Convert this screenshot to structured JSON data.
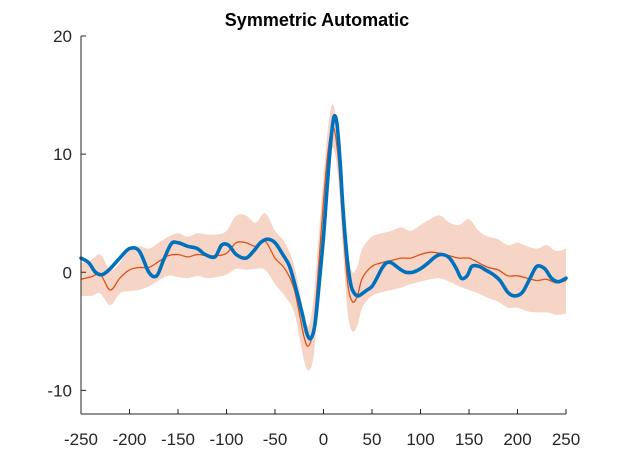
{
  "chart_data": {
    "type": "line",
    "title": "Symmetric Automatic",
    "xlabel": "",
    "ylabel": "",
    "xlim": [
      -250,
      250
    ],
    "ylim": [
      -12,
      20
    ],
    "xticks": [
      -250,
      -200,
      -150,
      -100,
      -50,
      0,
      50,
      100,
      150,
      200,
      250
    ],
    "xtick_labels": [
      "-250",
      "-200",
      "-150",
      "-100",
      "-50",
      "0",
      "50",
      "100",
      "150",
      "200",
      "250"
    ],
    "yticks": [
      -10,
      0,
      10,
      20
    ],
    "ytick_labels": [
      "-10",
      "0",
      "10",
      "20"
    ],
    "grid": false,
    "legend": "none",
    "colors": {
      "band": "#f6d5c7",
      "mean": "#d95319",
      "signal": "#0072bd",
      "axis": "#262626"
    },
    "band": {
      "x": [
        -250,
        -240,
        -230,
        -220,
        -210,
        -200,
        -190,
        -180,
        -170,
        -160,
        -150,
        -140,
        -130,
        -120,
        -110,
        -100,
        -90,
        -80,
        -70,
        -60,
        -50,
        -40,
        -30,
        -20,
        -15,
        -10,
        -5,
        0,
        5,
        10,
        15,
        20,
        25,
        30,
        35,
        40,
        50,
        60,
        70,
        80,
        90,
        100,
        110,
        120,
        130,
        140,
        150,
        160,
        170,
        180,
        190,
        200,
        210,
        220,
        230,
        240,
        250
      ],
      "upper": [
        0.8,
        1.0,
        1.5,
        0.2,
        0.8,
        2.0,
        2.2,
        2.0,
        2.5,
        3.0,
        3.3,
        3.0,
        3.3,
        3.2,
        3.2,
        3.5,
        4.8,
        4.8,
        4.2,
        5.0,
        3.5,
        2.5,
        0.5,
        -3.5,
        -4.5,
        -2.0,
        3.0,
        8.0,
        12.5,
        14.2,
        11.5,
        6.0,
        1.5,
        0.0,
        0.5,
        2.0,
        3.0,
        3.3,
        3.5,
        3.8,
        3.5,
        4.0,
        4.5,
        4.8,
        4.2,
        4.0,
        4.5,
        3.5,
        3.0,
        2.8,
        2.3,
        2.5,
        2.2,
        2.0,
        2.3,
        1.8,
        2.0
      ],
      "lower": [
        -2.0,
        -2.0,
        -1.8,
        -2.8,
        -1.8,
        -1.6,
        -1.5,
        -1.2,
        -0.7,
        -0.3,
        -0.4,
        -0.5,
        -0.3,
        -0.5,
        -0.4,
        -0.2,
        0.3,
        0.2,
        0.3,
        0.2,
        -1.0,
        -2.0,
        -3.5,
        -7.5,
        -8.3,
        -7.0,
        -2.0,
        4.0,
        9.0,
        10.5,
        8.0,
        2.0,
        -3.5,
        -5.0,
        -4.5,
        -3.0,
        -2.0,
        -1.7,
        -1.5,
        -1.3,
        -1.0,
        -0.8,
        -0.6,
        -0.5,
        -0.8,
        -1.2,
        -1.5,
        -1.8,
        -2.2,
        -2.5,
        -3.0,
        -3.0,
        -3.3,
        -3.4,
        -3.4,
        -3.6,
        -3.5
      ]
    },
    "series": [
      {
        "x": [
          -250,
          -240,
          -230,
          -220,
          -210,
          -200,
          -190,
          -180,
          -170,
          -160,
          -150,
          -140,
          -130,
          -120,
          -110,
          -100,
          -90,
          -80,
          -70,
          -60,
          -50,
          -40,
          -30,
          -20,
          -15,
          -10,
          -5,
          0,
          5,
          10,
          15,
          20,
          25,
          30,
          35,
          40,
          50,
          60,
          70,
          80,
          90,
          100,
          110,
          120,
          130,
          140,
          150,
          160,
          170,
          180,
          190,
          200,
          210,
          220,
          230,
          240,
          250
        ],
        "values": [
          -0.6,
          -0.4,
          -0.2,
          -1.5,
          -0.5,
          0.2,
          0.4,
          0.4,
          0.9,
          1.4,
          1.5,
          1.3,
          1.5,
          1.4,
          1.4,
          1.6,
          2.5,
          2.5,
          2.2,
          2.6,
          1.2,
          0.3,
          -1.5,
          -5.5,
          -6.2,
          -4.5,
          0.5,
          6.0,
          10.5,
          12.3,
          9.8,
          4.0,
          -1.0,
          -2.5,
          -2.0,
          -0.5,
          0.5,
          0.8,
          1.0,
          1.2,
          1.2,
          1.5,
          1.7,
          1.6,
          1.4,
          1.2,
          1.2,
          0.8,
          0.4,
          0.2,
          -0.3,
          -0.3,
          -0.5,
          -0.7,
          -0.6,
          -0.9,
          -0.7
        ]
      },
      {
        "x": [
          -250,
          -242,
          -235,
          -228,
          -220,
          -210,
          -200,
          -190,
          -180,
          -172,
          -165,
          -157,
          -150,
          -140,
          -130,
          -122,
          -112,
          -105,
          -98,
          -90,
          -80,
          -72,
          -65,
          -58,
          -50,
          -42,
          -35,
          -28,
          -22,
          -17,
          -13,
          -9,
          -5,
          0,
          4,
          8,
          11,
          14,
          17,
          20,
          24,
          28,
          32,
          36,
          40,
          45,
          50,
          55,
          60,
          65,
          70,
          75,
          80,
          85,
          92,
          100,
          108,
          115,
          122,
          130,
          137,
          142,
          148,
          153,
          160,
          167,
          175,
          182,
          190,
          197,
          205,
          213,
          220,
          228,
          235,
          242,
          250
        ],
        "values": [
          1.2,
          0.8,
          0.0,
          -0.2,
          0.3,
          1.2,
          2.0,
          1.8,
          0.0,
          -0.3,
          1.0,
          2.4,
          2.5,
          2.2,
          2.0,
          1.5,
          1.3,
          2.3,
          2.3,
          1.5,
          1.2,
          1.8,
          2.5,
          2.8,
          2.5,
          1.5,
          0.5,
          -1.5,
          -3.5,
          -5.2,
          -5.6,
          -4.5,
          -1.5,
          3.0,
          7.5,
          11.5,
          13.2,
          12.5,
          9.5,
          5.5,
          1.5,
          -1.0,
          -1.8,
          -2.0,
          -1.8,
          -1.5,
          -1.2,
          -0.5,
          0.3,
          0.8,
          0.8,
          0.5,
          0.2,
          0.0,
          0.0,
          0.3,
          0.8,
          1.3,
          1.5,
          1.2,
          0.3,
          -0.5,
          -0.3,
          0.5,
          0.5,
          0.2,
          -0.2,
          -0.7,
          -1.7,
          -2.0,
          -1.7,
          -0.5,
          0.5,
          0.3,
          -0.5,
          -0.8,
          -0.5
        ]
      }
    ]
  }
}
